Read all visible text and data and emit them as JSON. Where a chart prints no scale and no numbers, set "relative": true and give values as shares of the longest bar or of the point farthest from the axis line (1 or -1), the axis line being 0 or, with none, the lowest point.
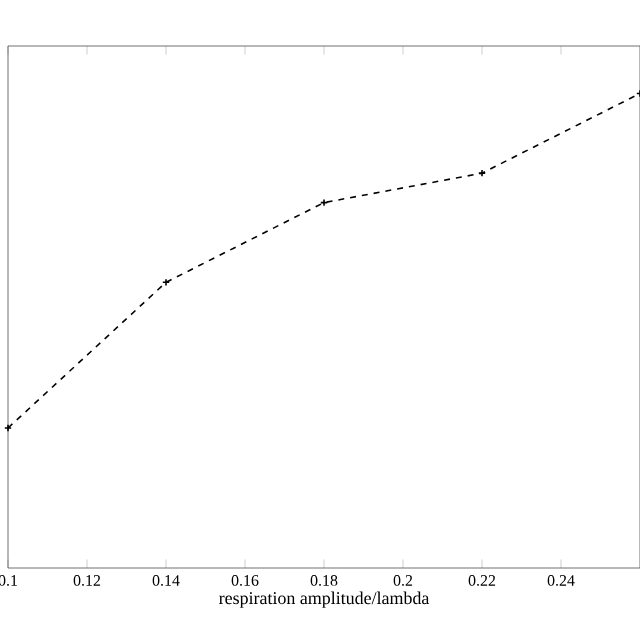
{
  "chart_data": {
    "type": "line",
    "xlabel": "respiration amplitude/lambda",
    "x": [
      0.1,
      0.14,
      0.18,
      0.22,
      0.26
    ],
    "values": [
      0.295,
      0.602,
      0.77,
      0.832,
      1
    ],
    "relative": true,
    "color": "#000000",
    "line_style": "dashed",
    "marker": "cross",
    "xlim": [
      0.1,
      0.26
    ],
    "xticks": [
      0.1,
      0.12,
      0.14,
      0.16,
      0.18,
      0.2,
      0.22,
      0.24
    ]
  }
}
